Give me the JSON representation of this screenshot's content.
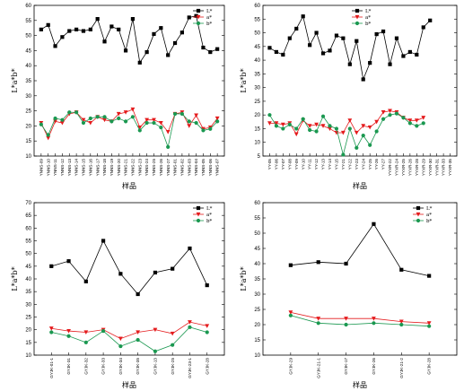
{
  "chart_data": [
    {
      "type": "line",
      "xlabel": "样品",
      "ylabel": "L*a*b*",
      "ylim": [
        10,
        60
      ],
      "yticks": [
        10,
        15,
        20,
        25,
        30,
        35,
        40,
        45,
        50,
        55,
        60
      ],
      "categories": [
        "YNNS-09",
        "YNNS-10",
        "YNNS-11",
        "YNNS-12",
        "YNNS-13",
        "YNNS-14",
        "YNNS-15",
        "YNNS-16",
        "YNNS-17",
        "YNNS-18",
        "YNNS-19",
        "YNNS-20",
        "YNNS-21",
        "YNNS-22",
        "YNNS-23",
        "YNNS-24",
        "YNNS-25",
        "YNNS-26",
        "YNNS-27",
        "YNNS-01",
        "YNNS-02",
        "YNNS-03",
        "YNNS-04",
        "YNNS-05",
        "YNNS-06",
        "YNNS-07"
      ],
      "legend": "top-right",
      "series": [
        {
          "name": "L*",
          "color": "#000000",
          "marker": "square",
          "values": [
            52,
            53.5,
            46.5,
            49.5,
            51.5,
            52,
            51.5,
            52,
            55.5,
            48,
            53,
            52,
            45,
            55.5,
            41,
            44.5,
            50.5,
            52.5,
            43.5,
            47.5,
            51,
            56,
            56.5,
            46,
            44.5,
            45.5
          ]
        },
        {
          "name": "a*",
          "color": "#e41a1c",
          "marker": "triangle-down",
          "values": [
            21,
            16,
            21.5,
            21,
            24,
            24.5,
            22,
            21,
            23,
            22,
            21.5,
            24,
            24.5,
            25.5,
            19.5,
            22,
            22,
            21,
            18,
            24,
            24.5,
            20,
            23.5,
            19,
            19.5,
            22.5
          ]
        },
        {
          "name": "b*",
          "color": "#1a9850",
          "marker": "circle",
          "values": [
            20.5,
            17,
            22.5,
            22,
            24.5,
            24.5,
            21,
            22.5,
            23,
            23,
            21.5,
            22.5,
            21.5,
            23,
            18.5,
            21,
            21,
            19.5,
            13,
            24,
            24,
            21.5,
            21,
            18.5,
            19,
            21.5
          ]
        }
      ]
    },
    {
      "type": "line",
      "xlabel": "样品",
      "ylabel": "L*a*b*",
      "ylim": [
        5,
        60
      ],
      "yticks": [
        5,
        10,
        15,
        20,
        25,
        30,
        35,
        40,
        45,
        50,
        55,
        60
      ],
      "categories": [
        "YY-05",
        "YY-06",
        "YY-07",
        "YY-08",
        "YY-09",
        "YY-10",
        "YY-11",
        "YY-12",
        "YY-13",
        "YY-14",
        "YY-15",
        "YY-21",
        "YY-22",
        "YY-23",
        "YY-24",
        "YY-25",
        "YY-26",
        "YY-27",
        "YYXR-22",
        "YYXR-24",
        "YYXR-25",
        "YYXR-26",
        "YYXR-28",
        "YYXR-29",
        "YYXR-30",
        "YYXR-31",
        "YYXR-33",
        "YYXR-35"
      ],
      "legend": "top-center",
      "series": [
        {
          "name": "L*",
          "color": "#000000",
          "marker": "square",
          "values": [
            44.5,
            43,
            42,
            48,
            51.5,
            56,
            45.5,
            50,
            42.5,
            43.5,
            49,
            48,
            38.5,
            47,
            33,
            39,
            49.5,
            50.5,
            38.5,
            48,
            41.5,
            43,
            42,
            52,
            54.5,
            null,
            null,
            null
          ]
        },
        {
          "name": "a*",
          "color": "#e41a1c",
          "marker": "triangle-down",
          "values": [
            17,
            17,
            16.5,
            17,
            13,
            18,
            16,
            16.5,
            16,
            15,
            13.5,
            13.5,
            18,
            13.5,
            16,
            15.5,
            17.5,
            21,
            21.5,
            21,
            19,
            18,
            18,
            19,
            null,
            null,
            null,
            null
          ]
        },
        {
          "name": "b*",
          "color": "#1a9850",
          "marker": "circle",
          "values": [
            20,
            16,
            15,
            16.5,
            15,
            18.5,
            14.5,
            14,
            19.5,
            16,
            15,
            5.5,
            15,
            8,
            12.5,
            9,
            14,
            18.5,
            20,
            20.5,
            19,
            17,
            16,
            17,
            null,
            null,
            null,
            null
          ]
        }
      ]
    },
    {
      "type": "line",
      "xlabel": "样品",
      "ylabel": "L*a*b*",
      "ylim": [
        10,
        70
      ],
      "yticks": [
        10,
        15,
        20,
        25,
        30,
        35,
        40,
        45,
        50,
        55,
        60,
        65,
        70
      ],
      "categories": [
        "GYJK-01-1",
        "GYJK-31",
        "GYJK-32",
        "GYJK-33",
        "GYJK-34",
        "GYJK-35",
        "GYJK-13",
        "GYJK-25",
        "GYJK-23-1",
        "GYJK-28"
      ],
      "legend": "top-right",
      "series": [
        {
          "name": "L*",
          "color": "#000000",
          "marker": "square",
          "values": [
            45,
            47,
            39,
            55,
            42,
            34,
            42.5,
            44,
            52,
            37.5
          ]
        },
        {
          "name": "a*",
          "color": "#e41a1c",
          "marker": "triangle-down",
          "values": [
            20.5,
            19.5,
            19,
            20,
            16.5,
            19,
            20,
            18.5,
            23,
            21.5
          ]
        },
        {
          "name": "b*",
          "color": "#1a9850",
          "marker": "circle",
          "values": [
            19,
            17.5,
            15,
            19.5,
            13.5,
            16,
            11.5,
            14,
            21,
            19
          ]
        }
      ]
    },
    {
      "type": "line",
      "xlabel": "样品",
      "ylabel": "L*a*b*",
      "ylim": [
        10,
        60
      ],
      "yticks": [
        10,
        15,
        20,
        25,
        30,
        35,
        40,
        45,
        50,
        55,
        60
      ],
      "categories": [
        "GYJK-29",
        "GYJK-21-1",
        "GYJK-17",
        "GYJK-26",
        "GYJK-21-2",
        "GYJK-28"
      ],
      "legend": "top-right",
      "series": [
        {
          "name": "L*",
          "color": "#000000",
          "marker": "square",
          "values": [
            39.5,
            40.5,
            40,
            53,
            38,
            36
          ]
        },
        {
          "name": "a*",
          "color": "#e41a1c",
          "marker": "triangle-down",
          "values": [
            24,
            22,
            22,
            22,
            21,
            20.5
          ]
        },
        {
          "name": "b*",
          "color": "#1a9850",
          "marker": "circle",
          "values": [
            23,
            20.5,
            20,
            20.5,
            20,
            19.5
          ]
        }
      ]
    }
  ]
}
